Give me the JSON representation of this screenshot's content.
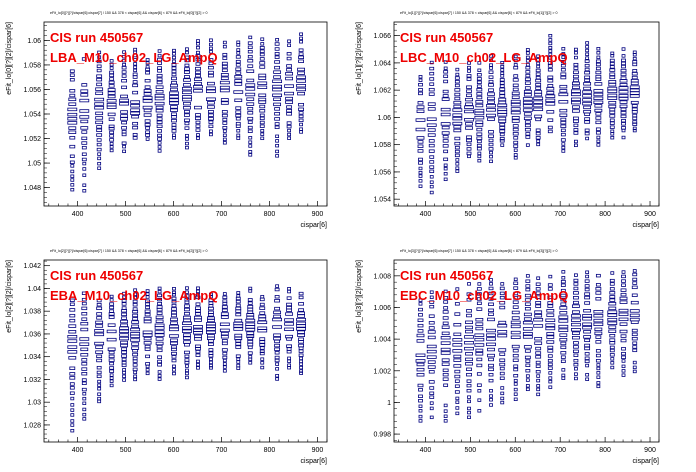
{
  "page": {
    "background": "#ffffff",
    "marker_color": "#00007f",
    "label_color": "#ee0000"
  },
  "chart_data": [
    {
      "type": "scatter",
      "title": "eFit_lo[0][?][?]/cispar[6]:cispar[7] / 150 && 378 < cispar[6] && cispar[6] < 879 && eFit_lo[0][?][2] > 0",
      "run_label": "CIS run 450567",
      "channel_label": "LBA_M10_ch02_LG_AmpQ",
      "xlabel": "cispar[6]",
      "ylabel": "eFit_lo[0][?][2]/cispar[6]",
      "xlim": [
        330,
        920
      ],
      "ylim": [
        1.0465,
        1.0615
      ],
      "xticks": [
        400,
        500,
        600,
        700,
        800,
        900
      ],
      "yticks": [
        1.048,
        1.05,
        1.052,
        1.054,
        1.056,
        1.058,
        1.06
      ],
      "ytick_labels": [
        "1.048",
        "1.05",
        "1.052",
        "1.054",
        "1.056",
        "1.058",
        "1.06"
      ],
      "x_bins": [
        389,
        414,
        445,
        471,
        497,
        520,
        546,
        571,
        601,
        628,
        651,
        678,
        707,
        735,
        760,
        785,
        816,
        841,
        866
      ],
      "spread": [
        [
          1.0478,
          1.0575
        ],
        [
          1.0478,
          1.0585
        ],
        [
          1.0496,
          1.059
        ],
        [
          1.051,
          1.0583
        ],
        [
          1.051,
          1.059
        ],
        [
          1.052,
          1.0593
        ],
        [
          1.052,
          1.059
        ],
        [
          1.051,
          1.0591
        ],
        [
          1.052,
          1.0592
        ],
        [
          1.0513,
          1.0593
        ],
        [
          1.052,
          1.06
        ],
        [
          1.052,
          1.06
        ],
        [
          1.0516,
          1.0598
        ],
        [
          1.052,
          1.0599
        ],
        [
          1.0506,
          1.0602
        ],
        [
          1.052,
          1.0601
        ],
        [
          1.0506,
          1.0601
        ],
        [
          1.052,
          1.0602
        ],
        [
          1.0525,
          1.0605
        ]
      ],
      "mean": [
        1.0538,
        1.0543,
        1.0548,
        1.0548,
        1.0548,
        1.0545,
        1.055,
        1.0552,
        1.0552,
        1.0555,
        1.0557,
        1.0558,
        1.056,
        1.0558,
        1.056,
        1.0562,
        1.056,
        1.0562,
        1.0565
      ]
    },
    {
      "type": "scatter",
      "title": "eFit_lo[1][?][?]/cispar[6]:cispar[7] / 150 && 378 < cispar[6] && cispar[6] < 879 && eFit_lo[1][?][2] > 0",
      "run_label": "CIS run 450567",
      "channel_label": "LBC_M10_ch02_LG_AmpQ",
      "xlabel": "cispar[6]",
      "ylabel": "eFit_lo[1][?][2]/cispar[6]",
      "xlim": [
        330,
        920
      ],
      "ylim": [
        1.0535,
        1.067
      ],
      "xticks": [
        400,
        500,
        600,
        700,
        800,
        900
      ],
      "yticks": [
        1.054,
        1.056,
        1.058,
        1.06,
        1.062,
        1.064,
        1.066
      ],
      "ytick_labels": [
        "1.054",
        "1.056",
        "1.058",
        "1.06",
        "1.062",
        "1.064",
        "1.066"
      ],
      "x_bins": [
        389,
        414,
        445,
        471,
        497,
        520,
        546,
        571,
        601,
        628,
        651,
        678,
        707,
        735,
        760,
        785,
        816,
        841,
        866
      ],
      "spread": [
        [
          1.055,
          1.063
        ],
        [
          1.0545,
          1.064
        ],
        [
          1.0555,
          1.064
        ],
        [
          1.056,
          1.0635
        ],
        [
          1.0565,
          1.064
        ],
        [
          1.0568,
          1.064
        ],
        [
          1.0568,
          1.0645
        ],
        [
          1.058,
          1.064
        ],
        [
          1.057,
          1.0645
        ],
        [
          1.058,
          1.065
        ],
        [
          1.058,
          1.0645
        ],
        [
          1.059,
          1.066
        ],
        [
          1.0575,
          1.065
        ],
        [
          1.058,
          1.065
        ],
        [
          1.0585,
          1.0655
        ],
        [
          1.058,
          1.065
        ],
        [
          1.0585,
          1.065
        ],
        [
          1.0585,
          1.065
        ],
        [
          1.059,
          1.0648
        ]
      ],
      "mean": [
        1.0595,
        1.0598,
        1.06,
        1.06,
        1.0602,
        1.0603,
        1.0605,
        1.0605,
        1.0608,
        1.061,
        1.061,
        1.0612,
        1.0612,
        1.0615,
        1.0615,
        1.0615,
        1.0618,
        1.0618,
        1.0618
      ]
    },
    {
      "type": "scatter",
      "title": "eFit_lo[2][?][?]/cispar[6]:cispar[7] / 150 && 378 < cispar[6] && cispar[6] < 879 && eFit_lo[2][?][2] > 0",
      "run_label": "CIS run 450567",
      "channel_label": "EBA_M10_ch02_LG_AmpQ",
      "xlabel": "cispar[6]",
      "ylabel": "eFit_lo[2][?][2]/cispar[6]",
      "xlim": [
        330,
        920
      ],
      "ylim": [
        1.0265,
        1.0425
      ],
      "xticks": [
        400,
        500,
        600,
        700,
        800,
        900
      ],
      "yticks": [
        1.028,
        1.03,
        1.032,
        1.034,
        1.036,
        1.038,
        1.04,
        1.042
      ],
      "ytick_labels": [
        "1.028",
        "1.03",
        "1.032",
        "1.034",
        "1.036",
        "1.038",
        "1.04",
        "1.042"
      ],
      "x_bins": [
        389,
        414,
        445,
        471,
        497,
        520,
        546,
        571,
        601,
        628,
        651,
        678,
        707,
        735,
        760,
        785,
        816,
        841,
        866
      ],
      "spread": [
        [
          1.0275,
          1.039
        ],
        [
          1.0285,
          1.0395
        ],
        [
          1.03,
          1.0393
        ],
        [
          1.0315,
          1.0393
        ],
        [
          1.032,
          1.0395
        ],
        [
          1.032,
          1.0398
        ],
        [
          1.0322,
          1.0398
        ],
        [
          1.032,
          1.04
        ],
        [
          1.0325,
          1.04
        ],
        [
          1.0322,
          1.04
        ],
        [
          1.033,
          1.04
        ],
        [
          1.033,
          1.0395
        ],
        [
          1.0325,
          1.0398
        ],
        [
          1.033,
          1.0396
        ],
        [
          1.0335,
          1.04
        ],
        [
          1.033,
          1.0393
        ],
        [
          1.032,
          1.0402
        ],
        [
          1.033,
          1.04
        ],
        [
          1.0325,
          1.0395
        ]
      ],
      "mean": [
        1.035,
        1.0355,
        1.0358,
        1.0358,
        1.036,
        1.036,
        1.0362,
        1.0362,
        1.0363,
        1.0365,
        1.0365,
        1.0365,
        1.0366,
        1.0366,
        1.0367,
        1.0367,
        1.0368,
        1.0368,
        1.0368
      ]
    },
    {
      "type": "scatter",
      "title": "eFit_lo[3][?][?]/cispar[6]:cispar[7] / 150 && 378 < cispar[6] && cispar[6] < 879 && eFit_lo[3][?][2] > 0",
      "run_label": "CIS run 450567",
      "channel_label": "EBC_M10_ch02_LG_AmpQ",
      "xlabel": "cispar[6]",
      "ylabel": "eFit_lo[3][?][2]/cispar[6]",
      "xlim": [
        330,
        920
      ],
      "ylim": [
        0.9975,
        1.009
      ],
      "xticks": [
        400,
        500,
        600,
        700,
        800,
        900
      ],
      "yticks": [
        0.998,
        1.0,
        1.002,
        1.004,
        1.006,
        1.008
      ],
      "ytick_labels": [
        "0.998",
        "1",
        "1.002",
        "1.004",
        "1.006",
        "1.008"
      ],
      "x_bins": [
        389,
        414,
        445,
        471,
        497,
        520,
        546,
        571,
        601,
        628,
        651,
        678,
        707,
        735,
        760,
        785,
        816,
        841,
        866
      ],
      "spread": [
        [
          0.9985,
          1.0065
        ],
        [
          0.999,
          1.007
        ],
        [
          0.9988,
          1.007
        ],
        [
          0.999,
          1.0072
        ],
        [
          0.999,
          1.0075
        ],
        [
          0.9995,
          1.0075
        ],
        [
          0.9998,
          1.0078
        ],
        [
          1.0,
          1.0075
        ],
        [
          1.0002,
          1.0078
        ],
        [
          1.0005,
          1.008
        ],
        [
          1.0005,
          1.0078
        ],
        [
          1.001,
          1.008
        ],
        [
          1.0012,
          1.0082
        ],
        [
          1.001,
          1.008
        ],
        [
          1.0015,
          1.0082
        ],
        [
          1.001,
          1.008
        ],
        [
          1.002,
          1.0082
        ],
        [
          1.0015,
          1.0082
        ],
        [
          1.002,
          1.0083
        ]
      ],
      "mean": [
        1.003,
        1.0033,
        1.0035,
        1.0036,
        1.0038,
        1.004,
        1.0042,
        1.0043,
        1.0045,
        1.0047,
        1.0048,
        1.0049,
        1.005,
        1.0051,
        1.0052,
        1.0053,
        1.0054,
        1.0055,
        1.0056
      ]
    }
  ]
}
